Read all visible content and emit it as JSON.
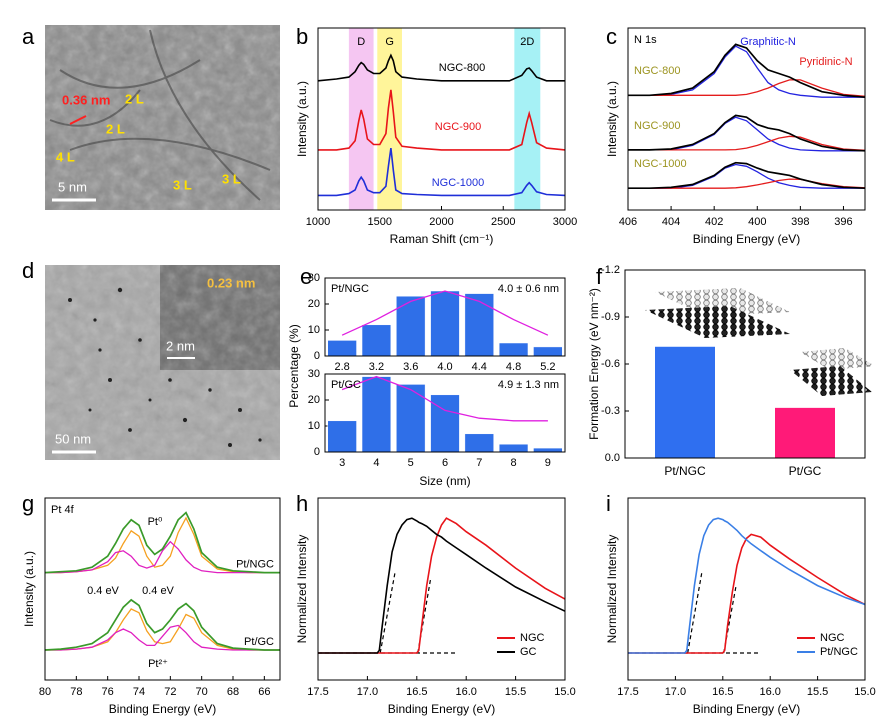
{
  "images": [
    {
      "panel": "a",
      "labels": [
        "0.36 nm",
        "2 L",
        "2 L",
        "4 L",
        "3 L",
        "3 L"
      ],
      "scale_bar": "5 nm"
    },
    {
      "panel": "d",
      "labels": [
        "0.23 nm"
      ],
      "scale_bar": "50 nm",
      "inset_scale_bar": "2 nm"
    }
  ],
  "chart_data": [
    {
      "type": "line",
      "panel": "b",
      "xlabel": "Raman Shift (cm⁻¹)",
      "ylabel": "Intensity (a.u.)",
      "xlim": [
        1000,
        3000
      ],
      "xticks": [
        1000,
        1500,
        2000,
        2500,
        3000
      ],
      "ylim": [
        0,
        10
      ],
      "legend": "inline",
      "bands": [
        {
          "label": "D",
          "range": [
            1250,
            1450
          ],
          "color": "#f5c6f2"
        },
        {
          "label": "G",
          "range": [
            1480,
            1680
          ],
          "color": "#fff59a"
        },
        {
          "label": "2D",
          "range": [
            2590,
            2800
          ],
          "color": "#a6f1f5"
        }
      ],
      "x": [
        1000,
        1150,
        1250,
        1300,
        1330,
        1350,
        1370,
        1400,
        1450,
        1500,
        1550,
        1570,
        1590,
        1610,
        1630,
        1680,
        1800,
        2000,
        2300,
        2550,
        2650,
        2690,
        2710,
        2730,
        2770,
        2850,
        3000
      ],
      "series": [
        {
          "name": "NGC-800",
          "color": "#000000",
          "values": [
            7.1,
            7.2,
            7.3,
            7.6,
            7.95,
            8.1,
            8.0,
            7.7,
            7.5,
            7.5,
            7.8,
            8.2,
            8.5,
            8.2,
            7.6,
            7.3,
            7.2,
            7.1,
            7.1,
            7.1,
            7.4,
            7.75,
            7.8,
            7.65,
            7.3,
            7.1,
            7.1
          ]
        },
        {
          "name": "NGC-900",
          "color": "#e8141a",
          "values": [
            3.3,
            3.3,
            3.4,
            3.8,
            4.9,
            5.5,
            5.0,
            3.9,
            3.6,
            3.6,
            4.2,
            5.6,
            6.6,
            5.4,
            4.0,
            3.5,
            3.4,
            3.3,
            3.3,
            3.3,
            3.6,
            4.8,
            5.3,
            4.8,
            3.7,
            3.4,
            3.3
          ]
        },
        {
          "name": "NGC-1000",
          "color": "#1f2fd8",
          "values": [
            0.8,
            0.8,
            0.9,
            1.1,
            1.6,
            1.8,
            1.6,
            1.1,
            0.95,
            0.95,
            1.3,
            2.4,
            3.4,
            2.2,
            1.1,
            0.9,
            0.85,
            0.8,
            0.8,
            0.8,
            0.95,
            1.35,
            1.5,
            1.35,
            1.0,
            0.85,
            0.8
          ]
        }
      ]
    },
    {
      "type": "xps",
      "panel": "c",
      "title": "N 1s",
      "xlabel": "Binding Energy (eV)",
      "ylabel": "Intensity (a.u.)",
      "xlim": [
        406,
        395
      ],
      "xticks": [
        406,
        404,
        402,
        400,
        398,
        396
      ],
      "ylim": [
        0,
        10
      ],
      "envelope_color": "#000000",
      "sample_color": "#9c9420",
      "components": [
        {
          "label": "Graphitic-N",
          "color": "#2424e0"
        },
        {
          "label": "Pyridinic-N",
          "color": "#e41c1c"
        }
      ],
      "x": [
        406,
        405,
        404,
        403,
        402,
        401.5,
        401,
        400.5,
        400,
        399.5,
        399,
        398.5,
        398,
        397,
        396,
        395
      ],
      "samples": [
        {
          "name": "NGC-800",
          "envelope": [
            6.3,
            6.3,
            6.4,
            6.7,
            7.6,
            8.5,
            9.1,
            8.9,
            8.2,
            7.7,
            7.5,
            7.3,
            7.0,
            6.5,
            6.3,
            6.2
          ],
          "components": [
            [
              6.3,
              6.3,
              6.35,
              6.6,
              7.5,
              8.4,
              9.0,
              8.7,
              7.8,
              7.0,
              6.6,
              6.4,
              6.3,
              6.2,
              6.2,
              6.2
            ],
            [
              6.3,
              6.3,
              6.3,
              6.3,
              6.3,
              6.3,
              6.3,
              6.35,
              6.5,
              6.7,
              6.95,
              7.15,
              7.15,
              6.7,
              6.35,
              6.25
            ]
          ]
        },
        {
          "name": "NGC-900",
          "envelope": [
            3.3,
            3.3,
            3.35,
            3.6,
            4.2,
            4.8,
            5.2,
            5.1,
            4.7,
            4.5,
            4.4,
            4.2,
            3.9,
            3.5,
            3.3,
            3.25
          ],
          "components": [
            [
              3.3,
              3.3,
              3.3,
              3.55,
              4.15,
              4.75,
              5.1,
              4.9,
              4.4,
              3.9,
              3.6,
              3.4,
              3.3,
              3.25,
              3.25,
              3.25
            ],
            [
              3.3,
              3.3,
              3.3,
              3.3,
              3.3,
              3.3,
              3.32,
              3.4,
              3.55,
              3.75,
              3.95,
              4.05,
              4.0,
              3.6,
              3.35,
              3.28
            ]
          ]
        },
        {
          "name": "NGC-1000",
          "envelope": [
            1.2,
            1.2,
            1.25,
            1.4,
            1.9,
            2.35,
            2.6,
            2.55,
            2.3,
            2.1,
            2.0,
            1.9,
            1.7,
            1.4,
            1.25,
            1.2
          ],
          "components": [
            [
              1.2,
              1.2,
              1.2,
              1.35,
              1.85,
              2.3,
              2.5,
              2.4,
              2.1,
              1.75,
              1.5,
              1.35,
              1.25,
              1.2,
              1.2,
              1.2
            ],
            [
              1.2,
              1.2,
              1.2,
              1.2,
              1.2,
              1.2,
              1.22,
              1.28,
              1.38,
              1.5,
              1.62,
              1.7,
              1.68,
              1.45,
              1.28,
              1.22
            ]
          ]
        }
      ]
    },
    {
      "type": "bar",
      "panel": "e",
      "label": "Pt/NGC",
      "annotation": "4.0 ± 0.6 nm",
      "ylabel": "Percentage (%)",
      "categories": [
        "2.8",
        "3.2",
        "3.6",
        "4.0",
        "4.4",
        "4.8",
        "5.2"
      ],
      "values": [
        6,
        12,
        23,
        25,
        24,
        5,
        3.5
      ],
      "fit": [
        8,
        14,
        21,
        25,
        21,
        14,
        8
      ],
      "color": "#2f6fe8",
      "fit_color": "#e020e0",
      "ylim": [
        0,
        30
      ],
      "yticks": [
        0,
        10,
        20,
        30
      ]
    },
    {
      "type": "bar",
      "label": "Pt/GC",
      "annotation": "4.9 ± 1.3 nm",
      "xlabel": "Size (nm)",
      "categories": [
        "3",
        "4",
        "5",
        "6",
        "7",
        "8",
        "9"
      ],
      "values": [
        12,
        29,
        26,
        22,
        7,
        3,
        1.5
      ],
      "fit": [
        24,
        29,
        24,
        16,
        13,
        12,
        12
      ],
      "color": "#2f6fe8",
      "fit_color": "#e020e0",
      "ylim": [
        0,
        30
      ],
      "yticks": [
        0,
        10,
        20,
        30
      ]
    },
    {
      "type": "column",
      "panel": "f",
      "ylabel": "Formation Energy (eV nm⁻²)",
      "categories": [
        "Pt/NGC",
        "Pt/GC"
      ],
      "values": [
        -0.71,
        -0.32
      ],
      "colors": [
        "#2f6ff0",
        "#ff1a78"
      ],
      "ylim": [
        0,
        -1.2
      ],
      "yticks": [
        {
          "value": 0,
          "label": "0.0"
        },
        -0.3,
        -0.6,
        -0.9,
        -1.2
      ]
    },
    {
      "type": "xps",
      "panel": "g",
      "title": "Pt 4f",
      "xlabel": "Binding Energy (eV)",
      "ylabel": "Intensity (a.u.)",
      "xlim": [
        80,
        65
      ],
      "xticks": [
        80,
        78,
        76,
        74,
        72,
        70,
        68,
        66
      ],
      "ylim": [
        0,
        10
      ],
      "envelope_color": "#3a9a2a",
      "sample_color": "#000000",
      "components": [
        {
          "label": "Pt⁰",
          "color": "#f5a020"
        },
        {
          "label": "Pt²⁺",
          "color": "#e020c0"
        }
      ],
      "annotations": [
        "0.4 eV",
        "0.4 eV"
      ],
      "x": [
        80,
        79,
        78,
        77,
        76,
        75.5,
        75,
        74.5,
        74,
        73.5,
        73,
        72.5,
        72,
        71.5,
        71,
        70.5,
        70,
        69,
        68,
        67,
        66,
        65
      ],
      "samples": [
        {
          "name": "Pt/NGC",
          "envelope": [
            5.9,
            5.95,
            6.0,
            6.2,
            6.8,
            7.5,
            8.3,
            8.8,
            8.5,
            7.4,
            6.9,
            7.2,
            7.9,
            8.8,
            9.2,
            8.3,
            7.0,
            6.2,
            6.0,
            5.95,
            5.9,
            5.9
          ],
          "components": [
            [
              5.9,
              5.9,
              5.95,
              6.05,
              6.3,
              6.7,
              7.5,
              8.2,
              7.9,
              6.8,
              6.2,
              6.3,
              6.8,
              8.1,
              8.9,
              8.0,
              6.8,
              6.1,
              5.95,
              5.9,
              5.9,
              5.9
            ],
            [
              5.9,
              5.9,
              5.95,
              6.05,
              6.5,
              7.0,
              7.1,
              6.8,
              6.3,
              6.15,
              6.3,
              7.1,
              7.6,
              7.2,
              6.6,
              6.2,
              6.0,
              5.9,
              5.9,
              5.9,
              5.9,
              5.9
            ]
          ]
        },
        {
          "name": "Pt/GC",
          "envelope": [
            1.65,
            1.7,
            1.8,
            2.0,
            2.6,
            3.3,
            4.0,
            4.4,
            4.1,
            3.1,
            2.6,
            2.8,
            3.3,
            3.9,
            4.2,
            3.8,
            2.9,
            2.0,
            1.75,
            1.7,
            1.65,
            1.65
          ],
          "components": [
            [
              1.65,
              1.65,
              1.7,
              1.8,
              2.1,
              2.6,
              3.3,
              3.9,
              3.7,
              2.7,
              2.1,
              2.0,
              2.1,
              2.8,
              3.6,
              3.4,
              2.6,
              1.9,
              1.7,
              1.65,
              1.65,
              1.65
            ],
            [
              1.65,
              1.65,
              1.7,
              1.8,
              2.2,
              2.6,
              2.8,
              2.6,
              2.2,
              1.9,
              1.9,
              2.4,
              2.9,
              3.0,
              2.6,
              2.1,
              1.8,
              1.7,
              1.65,
              1.65,
              1.65,
              1.65
            ]
          ]
        }
      ]
    },
    {
      "type": "line",
      "panel": "h",
      "xlabel": "Binding Energy (eV)",
      "ylabel": "Normalized Intensity",
      "xlim": [
        17.5,
        15.0
      ],
      "xticks": [
        17.5,
        {
          "value": 17,
          "label": "17.0"
        },
        16.5,
        {
          "value": 16,
          "label": "16.0"
        },
        15.5,
        {
          "value": 15,
          "label": "15.0"
        }
      ],
      "ylim": [
        -0.2,
        1.15
      ],
      "legend": "lower right",
      "x": [
        17.5,
        17.2,
        16.9,
        16.88,
        16.85,
        16.8,
        16.75,
        16.7,
        16.65,
        16.6,
        16.55,
        16.5,
        16.48,
        16.45,
        16.4,
        16.35,
        16.3,
        16.25,
        16.2,
        16.1,
        16.0,
        15.8,
        15.5,
        15.2,
        15.0
      ],
      "series": [
        {
          "name": "NGC",
          "color": "#e8141a",
          "values": [
            0,
            0,
            0,
            0,
            0,
            0,
            0,
            0,
            0,
            0,
            0,
            0,
            0.02,
            0.2,
            0.5,
            0.72,
            0.86,
            0.95,
            1.0,
            0.96,
            0.9,
            0.8,
            0.63,
            0.48,
            0.4
          ]
        },
        {
          "name": "GC",
          "color": "#000000",
          "values": [
            0,
            0,
            0,
            0.02,
            0.2,
            0.5,
            0.75,
            0.88,
            0.95,
            0.99,
            1.0,
            0.98,
            0.97,
            0.96,
            0.94,
            0.91,
            0.88,
            0.86,
            0.83,
            0.78,
            0.73,
            0.63,
            0.49,
            0.38,
            0.31
          ]
        }
      ],
      "dashed": [
        {
          "x": [
            17.5,
            16.1
          ],
          "values": [
            0,
            0
          ]
        },
        {
          "x": [
            16.87,
            16.72
          ],
          "values": [
            0,
            0.6
          ]
        },
        {
          "x": [
            16.49,
            16.36
          ],
          "values": [
            0,
            0.55
          ]
        }
      ]
    },
    {
      "type": "line",
      "panel": "i",
      "xlabel": "Binding Energy (eV)",
      "ylabel": "Normalized Intensity",
      "xlim": [
        17.5,
        15.0
      ],
      "xticks": [
        17.5,
        {
          "value": 17,
          "label": "17.0"
        },
        16.5,
        {
          "value": 16,
          "label": "16.0"
        },
        15.5,
        {
          "value": 15,
          "label": "15.0"
        }
      ],
      "ylim": [
        -0.2,
        1.15
      ],
      "legend": "lower right",
      "x": [
        17.5,
        17.2,
        16.9,
        16.88,
        16.85,
        16.8,
        16.75,
        16.7,
        16.65,
        16.6,
        16.55,
        16.5,
        16.48,
        16.45,
        16.4,
        16.35,
        16.3,
        16.25,
        16.2,
        16.1,
        16.0,
        15.8,
        15.5,
        15.2,
        15.0
      ],
      "series": [
        {
          "name": "NGC",
          "color": "#e8141a",
          "values": [
            0,
            0,
            0,
            0,
            0,
            0,
            0,
            0,
            0,
            0,
            0,
            0,
            0.02,
            0.2,
            0.45,
            0.65,
            0.78,
            0.85,
            0.88,
            0.86,
            0.8,
            0.7,
            0.56,
            0.43,
            0.36
          ]
        },
        {
          "name": "Pt/NGC",
          "color": "#3a7fe6",
          "values": [
            0,
            0,
            0,
            0.02,
            0.2,
            0.5,
            0.73,
            0.87,
            0.95,
            0.99,
            1.0,
            0.99,
            0.98,
            0.97,
            0.94,
            0.91,
            0.87,
            0.84,
            0.81,
            0.76,
            0.71,
            0.62,
            0.5,
            0.41,
            0.36
          ]
        }
      ],
      "dashed": [
        {
          "x": [
            17.5,
            16.1
          ],
          "values": [
            0,
            0
          ]
        },
        {
          "x": [
            16.87,
            16.72
          ],
          "values": [
            0,
            0.6
          ]
        },
        {
          "x": [
            16.49,
            16.36
          ],
          "values": [
            0,
            0.5
          ]
        }
      ]
    }
  ]
}
